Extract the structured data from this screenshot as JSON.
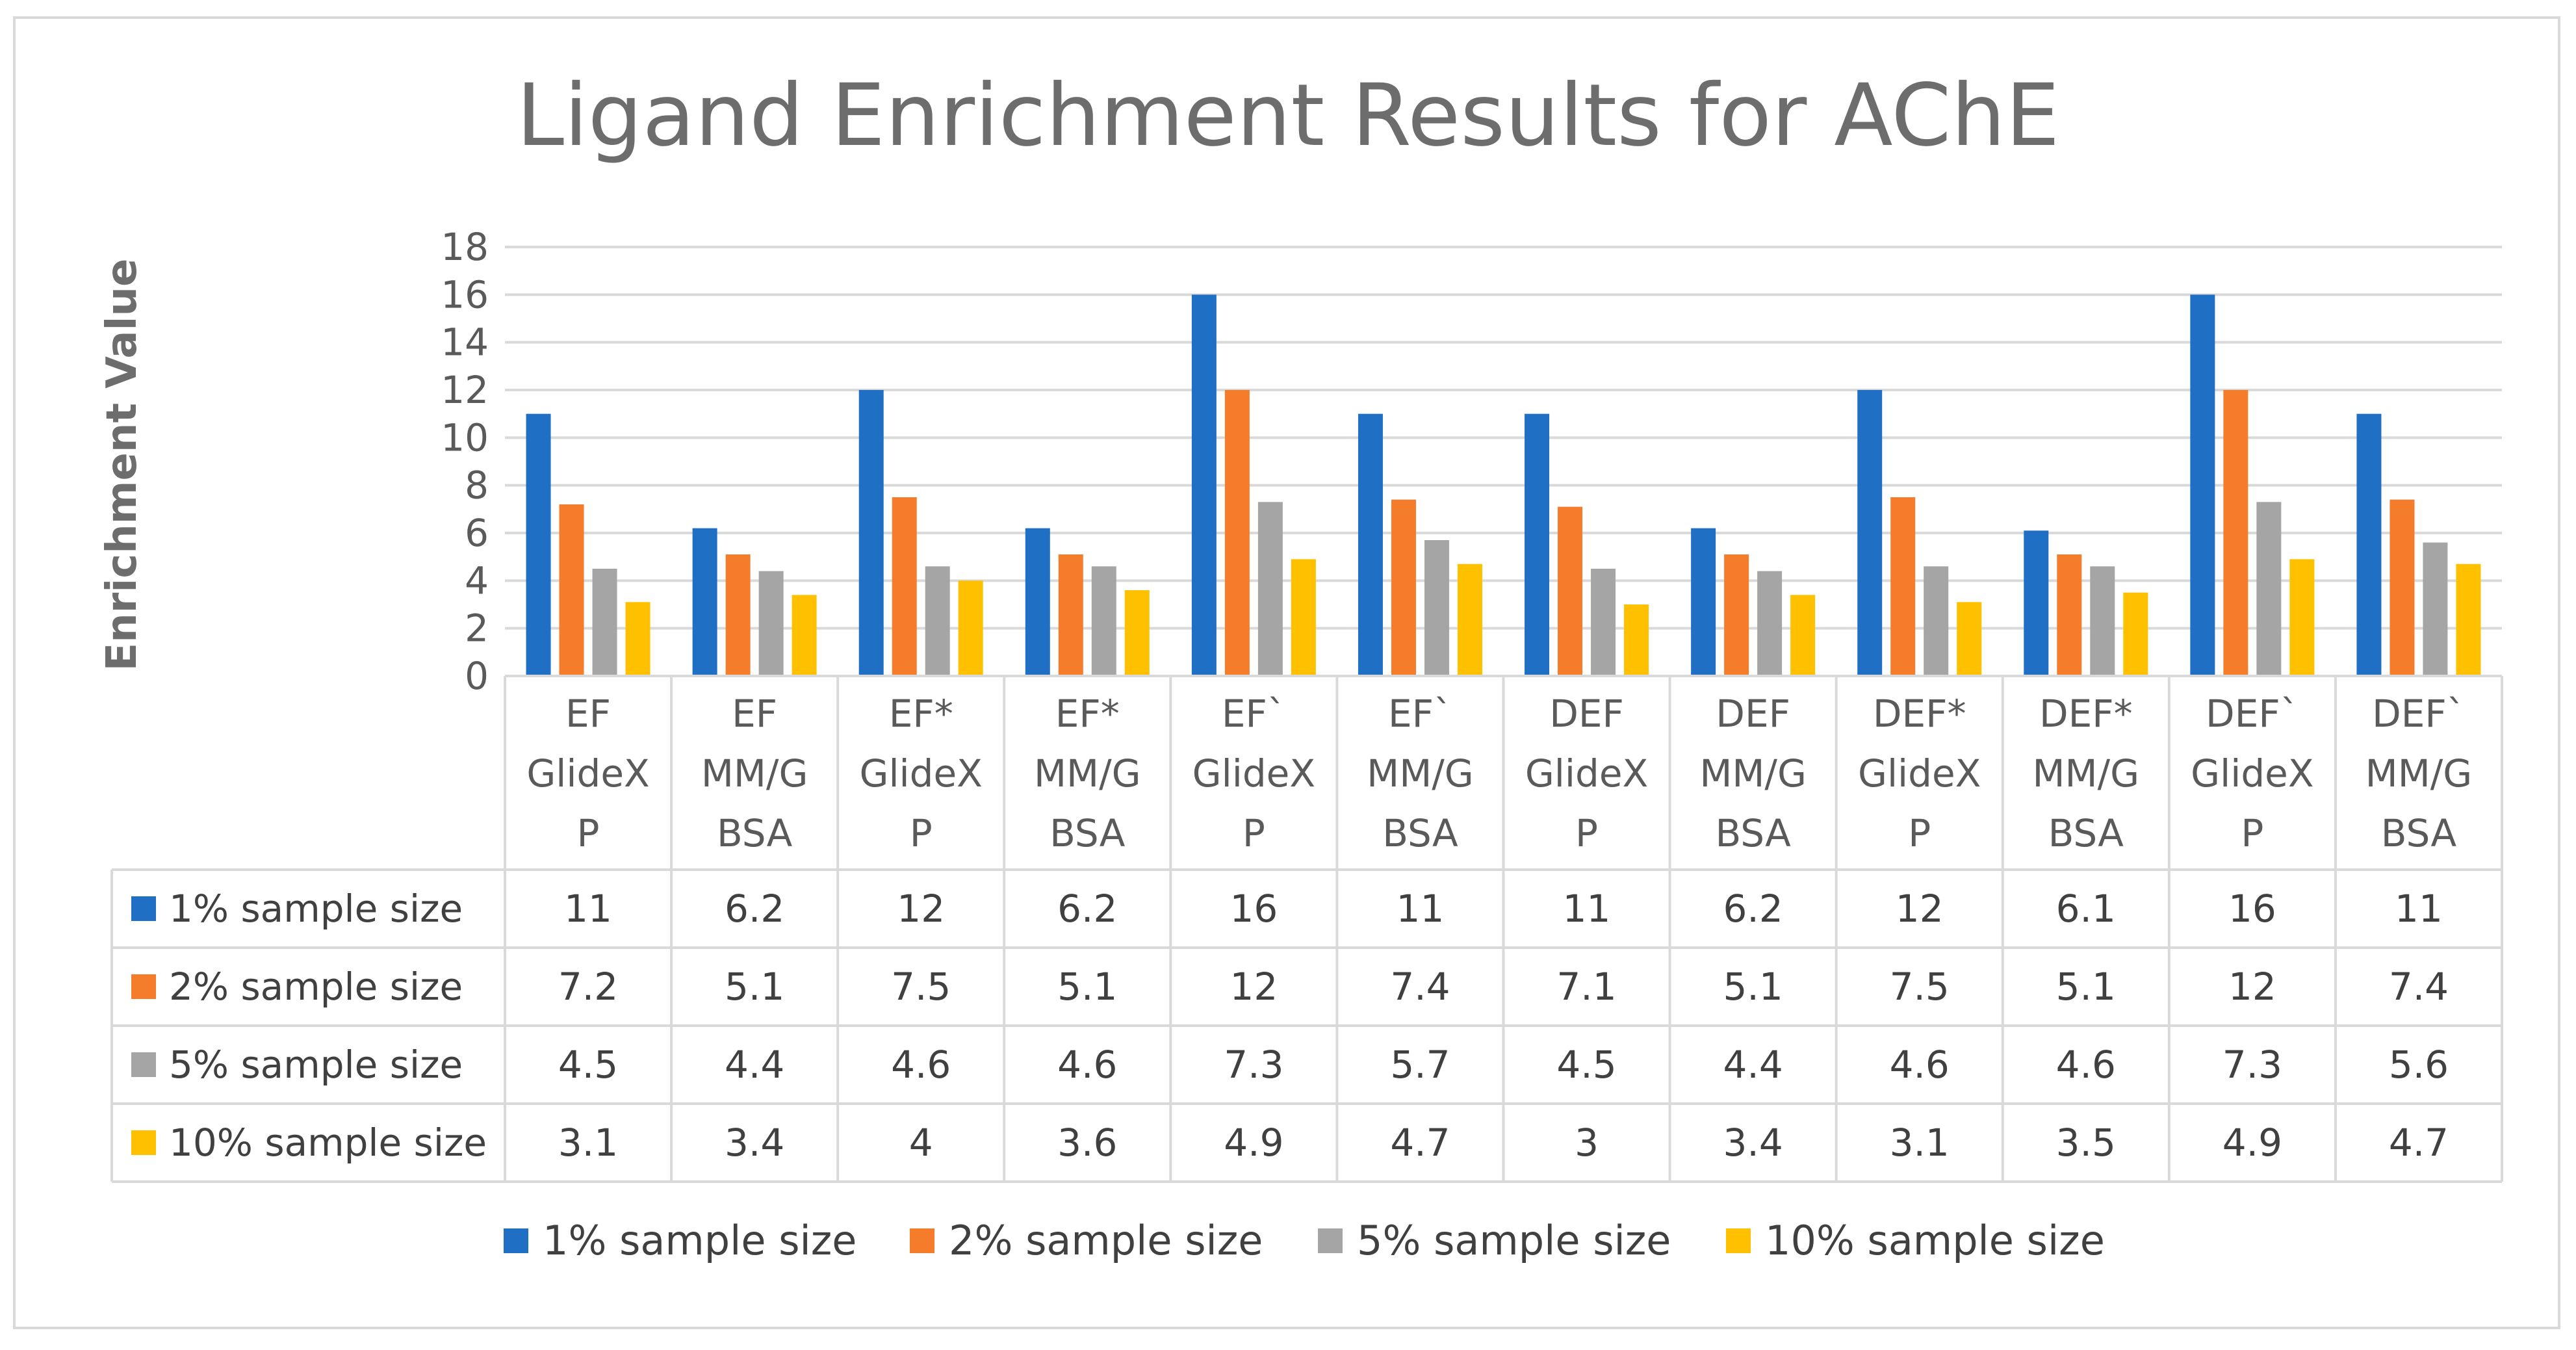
{
  "chart_data": {
    "type": "bar",
    "title": "Ligand Enrichment Results for AChE",
    "xlabel": "",
    "ylabel": "Enrichment Value",
    "ylim": [
      0,
      18
    ],
    "yticks": [
      0,
      2,
      4,
      6,
      8,
      10,
      12,
      14,
      16,
      18
    ],
    "grid": true,
    "legend_position": "bottom",
    "categories": [
      [
        "EF",
        "GlideX",
        "P"
      ],
      [
        "EF",
        "MM/G",
        "BSA"
      ],
      [
        "EF*",
        "GlideX",
        "P"
      ],
      [
        "EF*",
        "MM/G",
        "BSA"
      ],
      [
        "EF`",
        "GlideX",
        "P"
      ],
      [
        "EF`",
        "MM/G",
        "BSA"
      ],
      [
        "DEF",
        "GlideX",
        "P"
      ],
      [
        "DEF",
        "MM/G",
        "BSA"
      ],
      [
        "DEF*",
        "GlideX",
        "P"
      ],
      [
        "DEF*",
        "MM/G",
        "BSA"
      ],
      [
        "DEF`",
        "GlideX",
        "P"
      ],
      [
        "DEF`",
        "MM/G",
        "BSA"
      ]
    ],
    "series": [
      {
        "name": "1% sample size",
        "color": "#1f6fc5",
        "values": [
          11,
          6.2,
          12,
          6.2,
          16,
          11,
          11,
          6.2,
          12,
          6.1,
          16,
          11
        ],
        "labels": [
          "11",
          "6.2",
          "12",
          "6.2",
          "16",
          "11",
          "11",
          "6.2",
          "12",
          "6.1",
          "16",
          "11"
        ]
      },
      {
        "name": "2% sample size",
        "color": "#f57c2a",
        "values": [
          7.2,
          5.1,
          7.5,
          5.1,
          12,
          7.4,
          7.1,
          5.1,
          7.5,
          5.1,
          12,
          7.4
        ],
        "labels": [
          "7.2",
          "5.1",
          "7.5",
          "5.1",
          "12",
          "7.4",
          "7.1",
          "5.1",
          "7.5",
          "5.1",
          "12",
          "7.4"
        ]
      },
      {
        "name": "5% sample size",
        "color": "#a5a5a5",
        "values": [
          4.5,
          4.4,
          4.6,
          4.6,
          7.3,
          5.7,
          4.5,
          4.4,
          4.6,
          4.6,
          7.3,
          5.6
        ],
        "labels": [
          "4.5",
          "4.4",
          "4.6",
          "4.6",
          "7.3",
          "5.7",
          "4.5",
          "4.4",
          "4.6",
          "4.6",
          "7.3",
          "5.6"
        ]
      },
      {
        "name": "10% sample size",
        "color": "#ffc000",
        "values": [
          3.1,
          3.4,
          4,
          3.6,
          4.9,
          4.7,
          3,
          3.4,
          3.1,
          3.5,
          4.9,
          4.7
        ],
        "labels": [
          "3.1",
          "3.4",
          "4",
          "3.6",
          "4.9",
          "4.7",
          "3",
          "3.4",
          "3.1",
          "3.5",
          "4.9",
          "4.7"
        ]
      }
    ]
  }
}
